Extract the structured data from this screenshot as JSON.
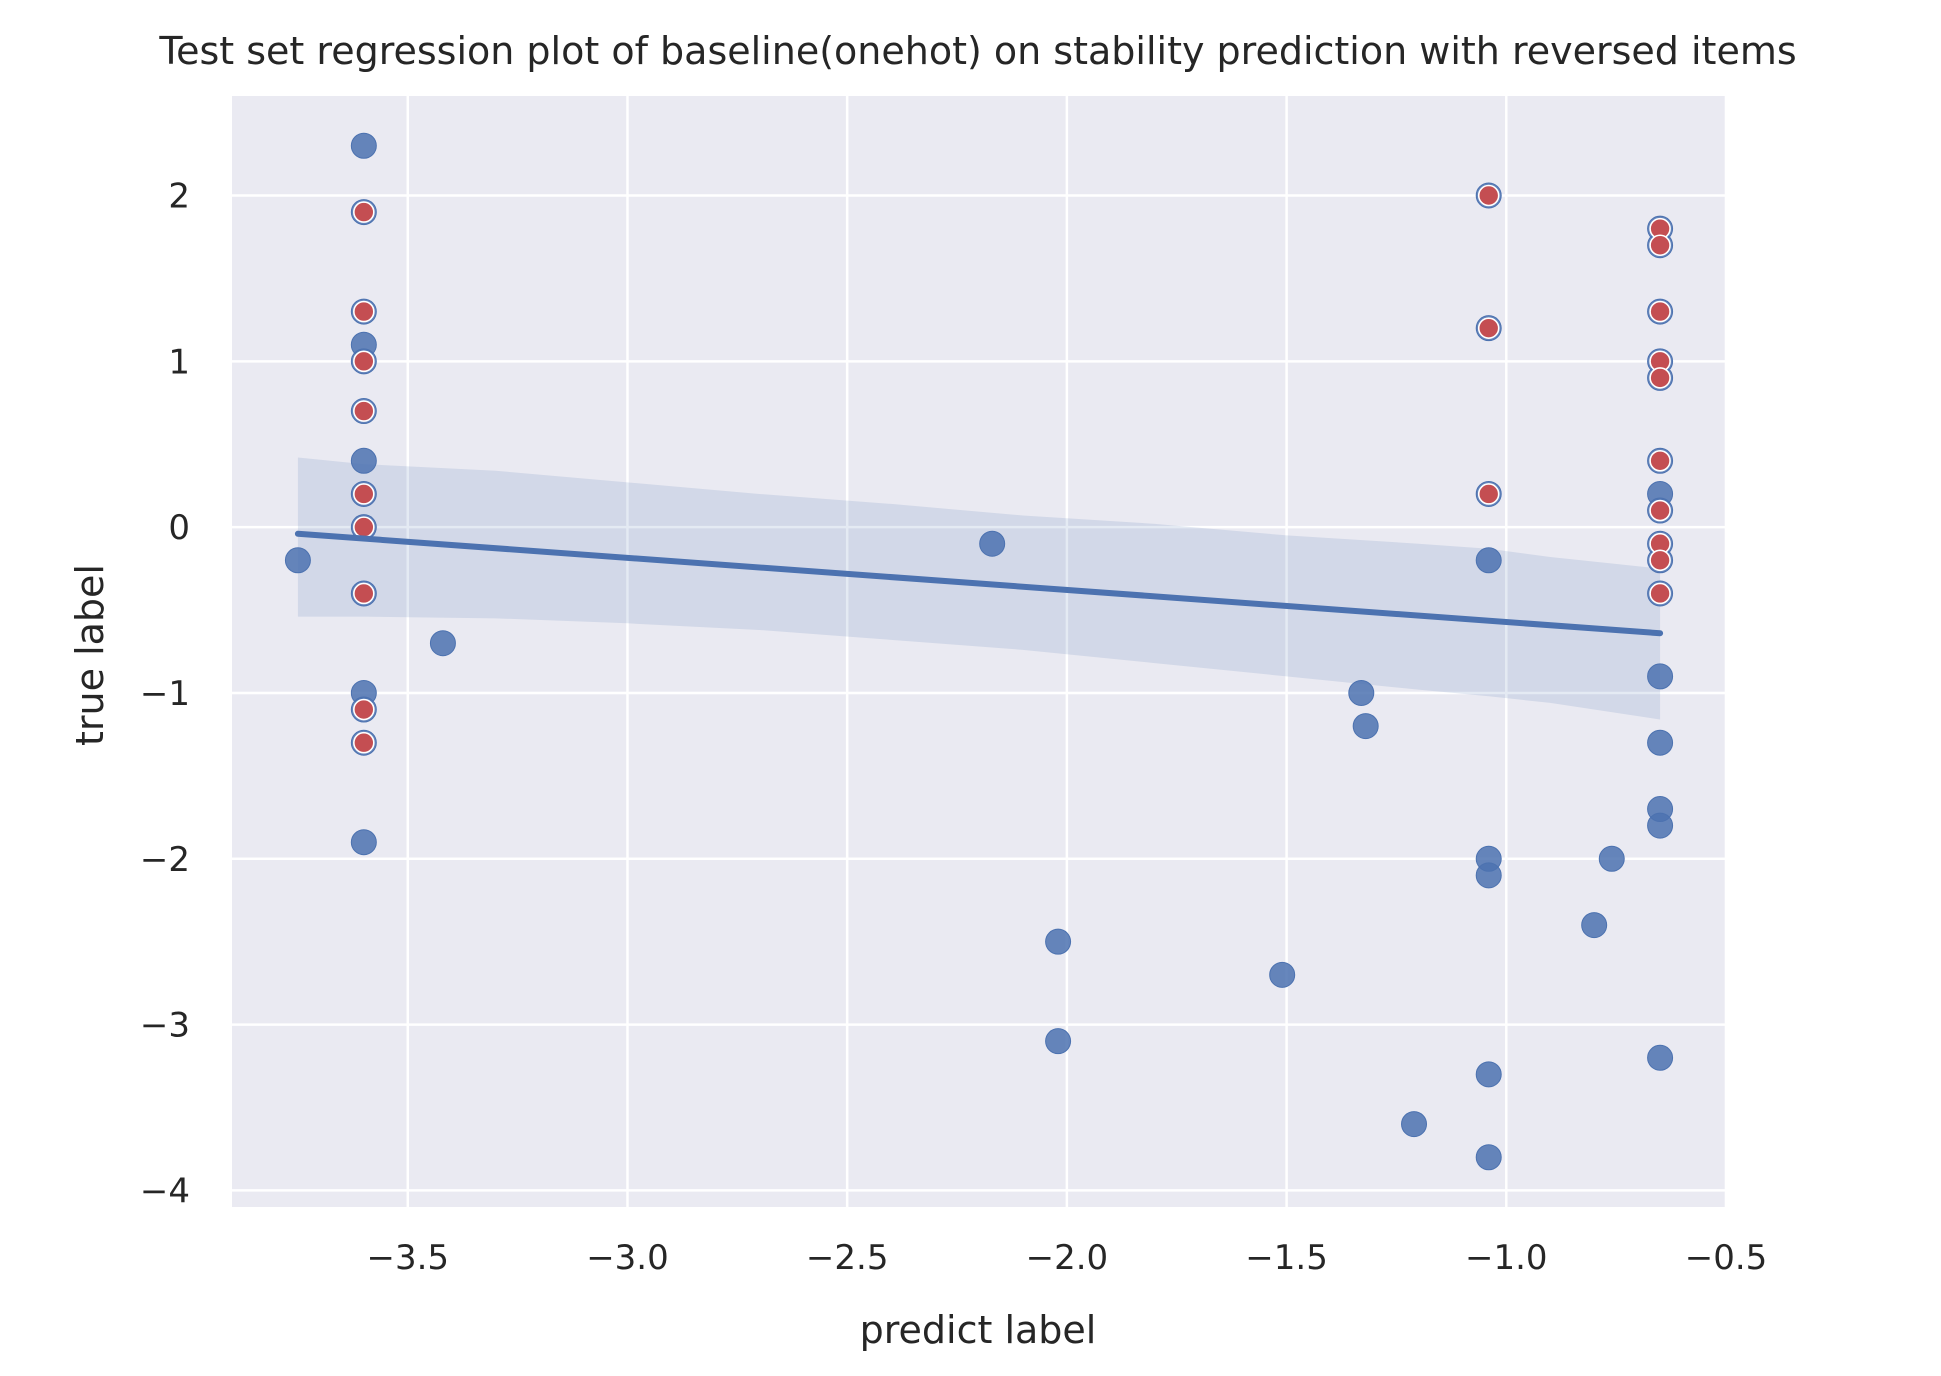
{
  "chart_data": {
    "type": "scatter",
    "title": "Test set regression plot of baseline(onehot) on stability prediction with reversed items",
    "xlabel": "predict label",
    "ylabel": "true label",
    "xlim": [
      -3.9,
      -0.5
    ],
    "ylim": [
      -4.1,
      2.6
    ],
    "xticks": [
      -3.5,
      -3.0,
      -2.5,
      -2.0,
      -1.5,
      -1.0,
      -0.5
    ],
    "xtick_labels": [
      "−3.5",
      "−3.0",
      "−2.5",
      "−2.0",
      "−1.5",
      "−1.0",
      "−0.5"
    ],
    "yticks": [
      2,
      1,
      0,
      -1,
      -2,
      -3,
      -4
    ],
    "ytick_labels": [
      "2",
      "1",
      "0",
      "−1",
      "−2",
      "−3",
      "−4"
    ],
    "grid": true,
    "background_color": "#eaeaf2",
    "series": [
      {
        "type": "scatter",
        "color": "#4c72b0",
        "points": [
          [
            -3.6,
            2.3
          ],
          [
            -3.6,
            1.9
          ],
          [
            -3.6,
            1.3
          ],
          [
            -3.6,
            1.1
          ],
          [
            -3.6,
            1.0
          ],
          [
            -3.6,
            0.7
          ],
          [
            -3.6,
            0.4
          ],
          [
            -3.6,
            0.2
          ],
          [
            -3.6,
            0.0
          ],
          [
            -3.6,
            -0.4
          ],
          [
            -3.6,
            -1.0
          ],
          [
            -3.6,
            -1.1
          ],
          [
            -3.6,
            -1.3
          ],
          [
            -3.6,
            -1.9
          ],
          [
            -3.75,
            -0.2
          ],
          [
            -3.42,
            -0.7
          ],
          [
            -2.17,
            -0.1
          ],
          [
            -2.02,
            -2.5
          ],
          [
            -2.02,
            -3.1
          ],
          [
            -1.51,
            -2.7
          ],
          [
            -1.33,
            -1.0
          ],
          [
            -1.32,
            -1.2
          ],
          [
            -1.21,
            -3.6
          ],
          [
            -1.04,
            2.0
          ],
          [
            -1.04,
            1.2
          ],
          [
            -1.04,
            0.2
          ],
          [
            -1.04,
            -0.2
          ],
          [
            -1.04,
            -2.0
          ],
          [
            -1.04,
            -2.1
          ],
          [
            -1.04,
            -3.3
          ],
          [
            -1.04,
            -3.8
          ],
          [
            -0.8,
            -2.4
          ],
          [
            -0.76,
            -2.0
          ],
          [
            -0.65,
            1.8
          ],
          [
            -0.65,
            1.7
          ],
          [
            -0.65,
            1.3
          ],
          [
            -0.65,
            1.0
          ],
          [
            -0.65,
            0.9
          ],
          [
            -0.65,
            0.4
          ],
          [
            -0.65,
            0.2
          ],
          [
            -0.65,
            0.1
          ],
          [
            -0.65,
            -0.1
          ],
          [
            -0.65,
            -0.2
          ],
          [
            -0.65,
            -0.4
          ],
          [
            -0.65,
            -0.9
          ],
          [
            -0.65,
            -1.3
          ],
          [
            -0.65,
            -1.7
          ],
          [
            -0.65,
            -1.8
          ],
          [
            -0.65,
            -3.2
          ]
        ]
      },
      {
        "type": "scatter",
        "color": "#c44e52",
        "points": [
          [
            -3.6,
            1.9
          ],
          [
            -3.6,
            1.3
          ],
          [
            -3.6,
            1.0
          ],
          [
            -3.6,
            0.7
          ],
          [
            -3.6,
            0.2
          ],
          [
            -3.6,
            0.0
          ],
          [
            -3.6,
            -0.4
          ],
          [
            -3.6,
            -1.1
          ],
          [
            -3.6,
            -1.3
          ],
          [
            -1.04,
            2.0
          ],
          [
            -1.04,
            1.2
          ],
          [
            -1.04,
            0.2
          ],
          [
            -0.65,
            1.8
          ],
          [
            -0.65,
            1.7
          ],
          [
            -0.65,
            1.3
          ],
          [
            -0.65,
            1.0
          ],
          [
            -0.65,
            0.9
          ],
          [
            -0.65,
            0.4
          ],
          [
            -0.65,
            0.1
          ],
          [
            -0.65,
            -0.1
          ],
          [
            -0.65,
            -0.2
          ],
          [
            -0.65,
            -0.4
          ]
        ]
      },
      {
        "type": "line",
        "color": "#4c72b0",
        "points": [
          [
            -3.75,
            -0.04
          ],
          [
            -0.65,
            -0.64
          ]
        ]
      },
      {
        "type": "area",
        "color": "#4c72b0",
        "x": [
          -3.75,
          -3.6,
          -3.3,
          -3.0,
          -2.7,
          -2.4,
          -2.1,
          -1.8,
          -1.5,
          -1.2,
          -1.04,
          -0.9,
          -0.65
        ],
        "upper": [
          0.42,
          0.38,
          0.34,
          0.27,
          0.2,
          0.14,
          0.07,
          0.02,
          -0.05,
          -0.1,
          -0.13,
          -0.18,
          -0.25
        ],
        "lower": [
          -0.54,
          -0.54,
          -0.55,
          -0.58,
          -0.62,
          -0.68,
          -0.74,
          -0.82,
          -0.9,
          -0.98,
          -1.02,
          -1.06,
          -1.16
        ]
      }
    ]
  }
}
